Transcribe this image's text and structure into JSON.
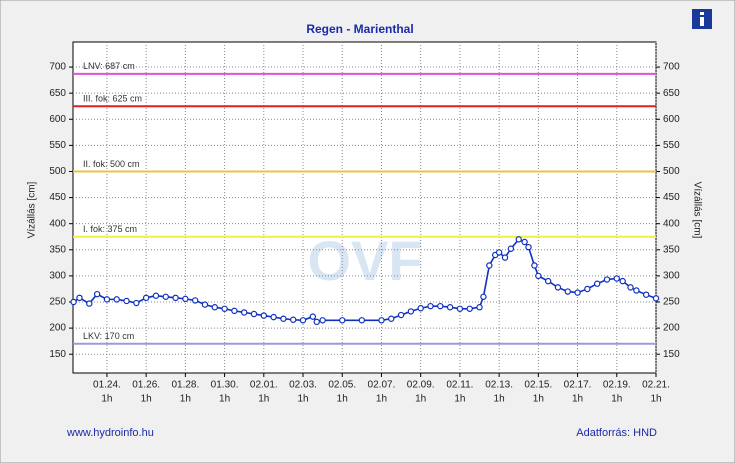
{
  "chart_data": {
    "type": "line",
    "title": "Regen - Marienthal",
    "y_label": "Vízállás [cm]",
    "y2_label": "Vízállás [cm]",
    "footer_left": "www.hydroinfo.hu",
    "footer_right": "Adatforrás: HND",
    "watermark": "OVF",
    "x_tick_hour": "1h",
    "xlim": [
      22.27,
      52
    ],
    "xticks": [
      {
        "value": 24,
        "label": "01.24."
      },
      {
        "value": 26,
        "label": "01.26."
      },
      {
        "value": 28,
        "label": "01.28."
      },
      {
        "value": 30,
        "label": "01.30."
      },
      {
        "value": 32,
        "label": "02.01."
      },
      {
        "value": 34,
        "label": "02.03."
      },
      {
        "value": 36,
        "label": "02.05."
      },
      {
        "value": 38,
        "label": "02.07."
      },
      {
        "value": 40,
        "label": "02.09."
      },
      {
        "value": 42,
        "label": "02.11."
      },
      {
        "value": 44,
        "label": "02.13."
      },
      {
        "value": 46,
        "label": "02.15."
      },
      {
        "value": 48,
        "label": "02.17."
      },
      {
        "value": 50,
        "label": "02.19."
      },
      {
        "value": 52,
        "label": "02.21."
      }
    ],
    "ylim": [
      114,
      748
    ],
    "yticks": [
      150,
      200,
      250,
      300,
      350,
      400,
      450,
      500,
      550,
      600,
      650,
      700
    ],
    "grid": true,
    "color": "#1030c0",
    "thresholds": [
      {
        "label": "LNV: 687 cm",
        "value": 687,
        "color": "#e050e0"
      },
      {
        "label": "III. fok: 625 cm",
        "value": 625,
        "color": "#e02020"
      },
      {
        "label": "II. fok: 500 cm",
        "value": 500,
        "color": "#f0c040"
      },
      {
        "label": "I. fok: 375 cm",
        "value": 375,
        "color": "#f0f040"
      },
      {
        "label": "LKV: 170 cm",
        "value": 170,
        "color": "#9a9ae0"
      }
    ],
    "x": [
      22.3,
      22.6,
      23.1,
      23.5,
      24,
      24.5,
      25,
      25.5,
      26,
      26.5,
      27,
      27.5,
      28,
      28.5,
      29,
      29.5,
      30,
      30.5,
      31,
      31.5,
      32,
      32.5,
      33,
      33.5,
      34,
      34.5,
      34.7,
      35,
      36,
      37,
      38,
      38.5,
      39,
      39.5,
      40,
      40.5,
      41,
      41.5,
      42,
      42.5,
      43,
      43.2,
      43.5,
      43.8,
      44,
      44.3,
      44.6,
      45,
      45.3,
      45.5,
      45.8,
      46,
      46.5,
      47,
      47.5,
      48,
      48.5,
      49,
      49.5,
      50,
      50.3,
      50.7,
      51,
      51.5,
      52
    ],
    "values": [
      250,
      258,
      247,
      265,
      255,
      255,
      252,
      248,
      258,
      262,
      260,
      258,
      256,
      253,
      245,
      240,
      237,
      233,
      230,
      227,
      224,
      221,
      218,
      216,
      215,
      222,
      212,
      215,
      215,
      215,
      215,
      218,
      225,
      232,
      238,
      242,
      242,
      240,
      237,
      237,
      240,
      260,
      320,
      340,
      345,
      335,
      352,
      370,
      365,
      355,
      320,
      300,
      290,
      278,
      270,
      268,
      275,
      285,
      293,
      295,
      290,
      278,
      272,
      264,
      257
    ]
  }
}
